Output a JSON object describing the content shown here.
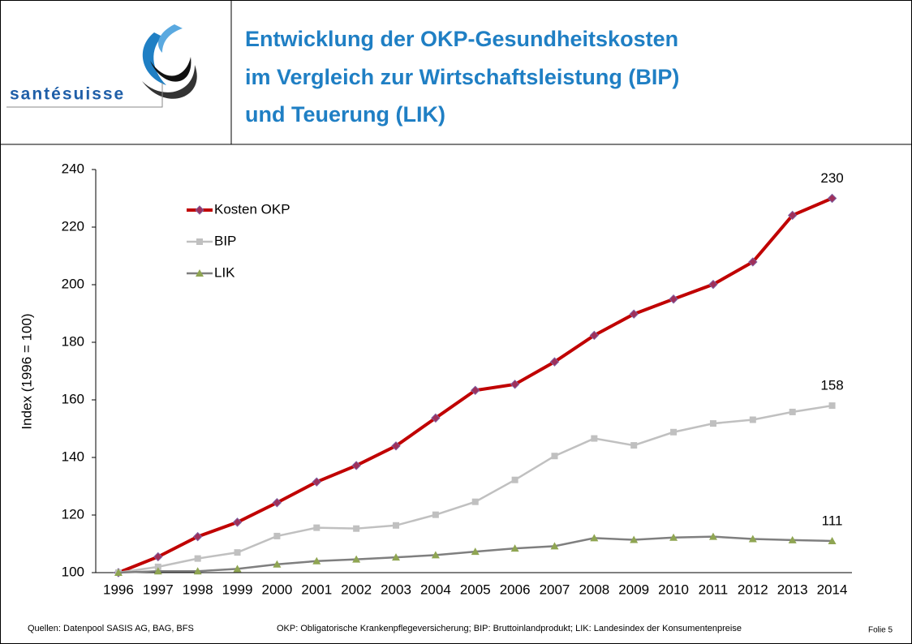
{
  "logo": {
    "text": "santésuisse"
  },
  "chart_data": {
    "type": "line",
    "title": [
      "Entwicklung der OKP-Gesundheitskosten",
      "im Vergleich zur Wirtschaftsleistung (BIP)",
      "und Teuerung (LIK)"
    ],
    "y_label": "Index (1996 = 100)",
    "categories": [
      "1996",
      "1997",
      "1998",
      "1999",
      "2000",
      "2001",
      "2002",
      "2003",
      "2004",
      "2005",
      "2006",
      "2007",
      "2008",
      "2009",
      "2010",
      "2011",
      "2012",
      "2013",
      "2014"
    ],
    "series": [
      {
        "name": "Kosten OKP",
        "color": "#c00000",
        "marker": "diamond",
        "marker_color": "#a0305a",
        "values": [
          100,
          105.5,
          112.5,
          117.5,
          124.3,
          131.5,
          137.2,
          144,
          153.7,
          163.3,
          165.4,
          173.2,
          182.4,
          189.8,
          195,
          200.1,
          207.9,
          224.1,
          230
        ]
      },
      {
        "name": "BIP",
        "color": "#c0c0c0",
        "marker": "square",
        "marker_color": "#c0c0c0",
        "values": [
          100,
          102,
          104.9,
          107,
          112.7,
          115.6,
          115.3,
          116.4,
          120.1,
          124.6,
          132.2,
          140.5,
          146.6,
          144.2,
          148.8,
          151.8,
          153.1,
          155.8,
          158
        ]
      },
      {
        "name": "LIK",
        "color": "#7f7f7f",
        "marker": "triangle",
        "marker_color": "#8fa552",
        "values": [
          100,
          100.5,
          100.5,
          101.3,
          102.9,
          104,
          104.6,
          105.3,
          106.1,
          107.3,
          108.4,
          109.2,
          112,
          111.4,
          112.2,
          112.5,
          111.7,
          111.3,
          111
        ]
      }
    ],
    "ylim": [
      100,
      240
    ],
    "yticks": [
      100,
      120,
      140,
      160,
      180,
      200,
      220,
      240
    ],
    "legend": "upper-left"
  },
  "footer": {
    "source": "Quellen: Datenpool SASIS AG, BAG, BFS",
    "note": "OKP: Obligatorische Krankenpflegeversicherung; BIP: Bruttoinlandprodukt; LIK: Landesindex der Konsumentenpreise",
    "slide": "Folie 5"
  }
}
